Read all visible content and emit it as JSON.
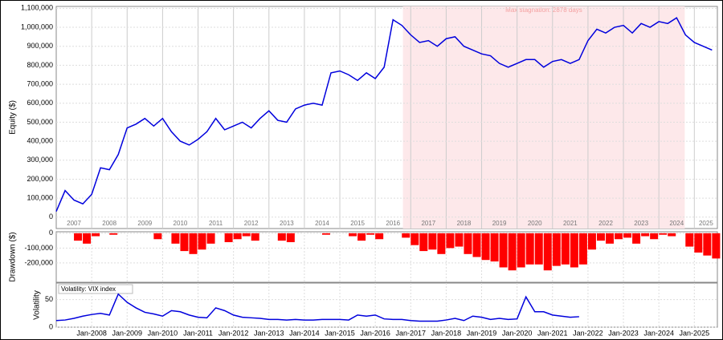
{
  "chart_data": [
    {
      "type": "line",
      "y_label": "Equity ($)",
      "color": "#0000dd",
      "x": [
        2007.0,
        2007.25,
        2007.5,
        2007.75,
        2008.0,
        2008.25,
        2008.5,
        2008.75,
        2009.0,
        2009.25,
        2009.5,
        2009.75,
        2010.0,
        2010.25,
        2010.5,
        2010.75,
        2011.0,
        2011.25,
        2011.5,
        2011.75,
        2012.0,
        2012.25,
        2012.5,
        2012.75,
        2013.0,
        2013.25,
        2013.5,
        2013.75,
        2014.0,
        2014.25,
        2014.5,
        2014.75,
        2015.0,
        2015.25,
        2015.5,
        2015.75,
        2016.0,
        2016.25,
        2016.5,
        2016.75,
        2017.0,
        2017.25,
        2017.5,
        2017.75,
        2018.0,
        2018.25,
        2018.5,
        2018.75,
        2019.0,
        2019.25,
        2019.5,
        2019.75,
        2020.0,
        2020.25,
        2020.5,
        2020.75,
        2021.0,
        2021.25,
        2021.5,
        2021.75,
        2022.0,
        2022.25,
        2022.5,
        2022.75,
        2023.0,
        2023.25,
        2023.5,
        2023.75,
        2024.0,
        2024.25,
        2024.5,
        2024.75,
        2025.0,
        2025.25,
        2025.5
      ],
      "values": [
        30000,
        140000,
        90000,
        70000,
        120000,
        260000,
        250000,
        330000,
        470000,
        490000,
        520000,
        480000,
        520000,
        450000,
        400000,
        380000,
        410000,
        450000,
        520000,
        460000,
        480000,
        500000,
        470000,
        520000,
        560000,
        510000,
        500000,
        570000,
        590000,
        600000,
        590000,
        760000,
        770000,
        750000,
        720000,
        760000,
        730000,
        790000,
        1040000,
        1010000,
        960000,
        920000,
        930000,
        900000,
        940000,
        950000,
        900000,
        880000,
        860000,
        850000,
        810000,
        790000,
        810000,
        830000,
        830000,
        790000,
        820000,
        830000,
        810000,
        830000,
        930000,
        990000,
        970000,
        1000000,
        1010000,
        970000,
        1020000,
        1000000,
        1030000,
        1020000,
        1050000,
        960000,
        920000,
        900000,
        880000
      ],
      "xlim": [
        2007.0,
        2025.65
      ],
      "ylim": [
        -60000,
        1110000
      ],
      "xticks": [
        {
          "value": 2007.5,
          "label": "2007"
        },
        {
          "value": 2008.5,
          "label": "2008"
        },
        {
          "value": 2009.5,
          "label": "2009"
        },
        {
          "value": 2010.5,
          "label": "2010"
        },
        {
          "value": 2011.5,
          "label": "2011"
        },
        {
          "value": 2012.5,
          "label": "2012"
        },
        {
          "value": 2013.5,
          "label": "2013"
        },
        {
          "value": 2014.5,
          "label": "2014"
        },
        {
          "value": 2015.5,
          "label": "2015"
        },
        {
          "value": 2016.5,
          "label": "2016"
        },
        {
          "value": 2017.5,
          "label": "2017"
        },
        {
          "value": 2018.5,
          "label": "2018"
        },
        {
          "value": 2019.5,
          "label": "2019"
        },
        {
          "value": 2020.5,
          "label": "2020"
        },
        {
          "value": 2021.5,
          "label": "2021"
        },
        {
          "value": 2022.5,
          "label": "2022"
        },
        {
          "value": 2023.5,
          "label": "2023"
        },
        {
          "value": 2024.5,
          "label": "2024"
        },
        {
          "value": 2025.33,
          "label": "2025"
        }
      ],
      "yticks": [
        0,
        {
          "value": 100000,
          "label": "100,000"
        },
        {
          "value": 200000,
          "label": "200,000"
        },
        {
          "value": 300000,
          "label": "300,000"
        },
        {
          "value": 400000,
          "label": "400,000"
        },
        {
          "value": 500000,
          "label": "500,000"
        },
        {
          "value": 600000,
          "label": "600,000"
        },
        {
          "value": 700000,
          "label": "700,000"
        },
        {
          "value": 800000,
          "label": "800,000"
        },
        {
          "value": 900000,
          "label": "900,000"
        },
        {
          "value": 1000000,
          "label": "1,000,000"
        },
        {
          "value": 1100000,
          "label": "1,100,000"
        }
      ],
      "shade": {
        "x": [
          2016.78,
          2024.73
        ],
        "label": "Max stagnation: 2878 days",
        "color": "#fde8ea"
      }
    },
    {
      "type": "bar",
      "y_label": "Drawdown ($)",
      "color": "#ff0000",
      "x": [
        2007.0,
        2007.25,
        2007.5,
        2007.75,
        2008.0,
        2008.25,
        2008.5,
        2008.75,
        2009.0,
        2009.25,
        2009.5,
        2009.75,
        2010.0,
        2010.25,
        2010.5,
        2010.75,
        2011.0,
        2011.25,
        2011.5,
        2011.75,
        2012.0,
        2012.25,
        2012.5,
        2012.75,
        2013.0,
        2013.25,
        2013.5,
        2013.75,
        2014.0,
        2014.25,
        2014.5,
        2014.75,
        2015.0,
        2015.25,
        2015.5,
        2015.75,
        2016.0,
        2016.25,
        2016.5,
        2016.75,
        2017.0,
        2017.25,
        2017.5,
        2017.75,
        2018.0,
        2018.25,
        2018.5,
        2018.75,
        2019.0,
        2019.25,
        2019.5,
        2019.75,
        2020.0,
        2020.25,
        2020.5,
        2020.75,
        2021.0,
        2021.25,
        2021.5,
        2021.75,
        2022.0,
        2022.25,
        2022.5,
        2022.75,
        2023.0,
        2023.25,
        2023.5,
        2023.75,
        2024.0,
        2024.25,
        2024.5,
        2024.75,
        2025.0,
        2025.25,
        2025.5
      ],
      "values": [
        0,
        0,
        -50000,
        -70000,
        -20000,
        0,
        -10000,
        0,
        0,
        0,
        0,
        -40000,
        0,
        -70000,
        -120000,
        -140000,
        -110000,
        -70000,
        0,
        -60000,
        -40000,
        -20000,
        -50000,
        0,
        0,
        -50000,
        -60000,
        0,
        0,
        0,
        -10000,
        0,
        0,
        -20000,
        -50000,
        -10000,
        -40000,
        0,
        0,
        -30000,
        -80000,
        -120000,
        -110000,
        -140000,
        -100000,
        -90000,
        -140000,
        -160000,
        -180000,
        -190000,
        -230000,
        -250000,
        -230000,
        -210000,
        -210000,
        -250000,
        -220000,
        -210000,
        -230000,
        -210000,
        -110000,
        -50000,
        -70000,
        -40000,
        -30000,
        -70000,
        -20000,
        -40000,
        -10000,
        -20000,
        0,
        -90000,
        -130000,
        -150000,
        -170000
      ],
      "xlim": [
        2007.0,
        2025.65
      ],
      "ylim": [
        -330000,
        10000
      ],
      "yticks": [
        0,
        {
          "value": -100000,
          "label": "-100,000"
        },
        {
          "value": -200000,
          "label": "-200,000"
        }
      ]
    },
    {
      "type": "line",
      "y_label": "Volatility",
      "legend": "Volatility: VIX index",
      "color": "#0000dd",
      "x": [
        2007.0,
        2007.25,
        2007.5,
        2007.75,
        2008.0,
        2008.25,
        2008.5,
        2008.75,
        2009.0,
        2009.25,
        2009.5,
        2009.75,
        2010.0,
        2010.25,
        2010.5,
        2010.75,
        2011.0,
        2011.25,
        2011.5,
        2011.75,
        2012.0,
        2012.25,
        2012.5,
        2012.75,
        2013.0,
        2013.25,
        2013.5,
        2013.75,
        2014.0,
        2014.25,
        2014.5,
        2014.75,
        2015.0,
        2015.25,
        2015.5,
        2015.75,
        2016.0,
        2016.25,
        2016.5,
        2016.75,
        2017.0,
        2017.25,
        2017.5,
        2017.75,
        2018.0,
        2018.25,
        2018.5,
        2018.75,
        2019.0,
        2019.25,
        2019.5,
        2019.75,
        2020.0,
        2020.25,
        2020.5,
        2020.75,
        2021.0,
        2021.25,
        2021.5,
        2021.75
      ],
      "values": [
        12,
        13,
        16,
        20,
        23,
        25,
        22,
        60,
        45,
        35,
        27,
        24,
        20,
        30,
        28,
        22,
        18,
        17,
        35,
        30,
        22,
        18,
        17,
        16,
        14,
        14,
        13,
        14,
        13,
        13,
        14,
        14,
        14,
        13,
        22,
        20,
        22,
        15,
        14,
        14,
        12,
        11,
        11,
        11,
        13,
        16,
        12,
        20,
        18,
        14,
        16,
        14,
        15,
        55,
        28,
        28,
        22,
        20,
        18,
        19
      ],
      "xlim": [
        2007.0,
        2025.65
      ],
      "ylim": [
        0,
        80
      ],
      "yticks": [
        0,
        50
      ],
      "xticks": [
        {
          "value": 2008,
          "label": "Jan-2008"
        },
        {
          "value": 2009,
          "label": "Jan-2009"
        },
        {
          "value": 2010,
          "label": "Jan-2010"
        },
        {
          "value": 2011,
          "label": "Jan-2011"
        },
        {
          "value": 2012,
          "label": "Jan-2012"
        },
        {
          "value": 2013,
          "label": "Jan-2013"
        },
        {
          "value": 2014,
          "label": "Jan-2014"
        },
        {
          "value": 2015,
          "label": "Jan-2015"
        },
        {
          "value": 2016,
          "label": "Jan-2016"
        },
        {
          "value": 2017,
          "label": "Jan-2017"
        },
        {
          "value": 2018,
          "label": "Jan-2018"
        },
        {
          "value": 2019,
          "label": "Jan-2019"
        },
        {
          "value": 2020,
          "label": "Jan-2020"
        },
        {
          "value": 2021,
          "label": "Jan-2021"
        },
        {
          "value": 2022,
          "label": "Jan-2022"
        },
        {
          "value": 2023,
          "label": "Jan-2023"
        },
        {
          "value": 2024,
          "label": "Jan-2024"
        },
        {
          "value": 2025,
          "label": "Jan-2025"
        }
      ]
    }
  ]
}
